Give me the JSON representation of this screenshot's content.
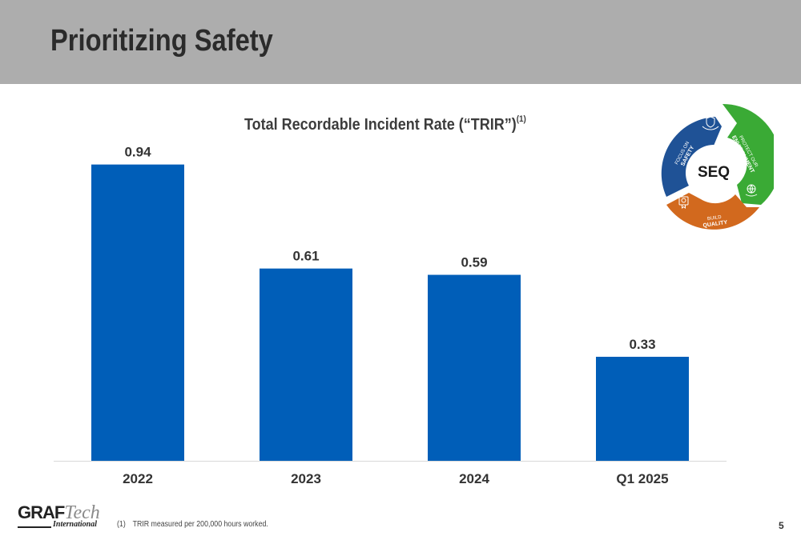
{
  "header": {
    "title": "Prioritizing Safety"
  },
  "chart_data": {
    "type": "bar",
    "title": "Total Recordable Incident Rate (“TRIR”)",
    "title_footnote_marker": "(1)",
    "categories": [
      "2022",
      "2023",
      "2024",
      "Q1 2025"
    ],
    "values": [
      0.94,
      0.61,
      0.59,
      0.33
    ],
    "value_labels": [
      "0.94",
      "0.61",
      "0.59",
      "0.33"
    ],
    "ylim": [
      0,
      1.0
    ],
    "grid": false,
    "bar_color": "#005eb8",
    "xlabel": "",
    "ylabel": ""
  },
  "seq_graphic": {
    "center_label": "SEQ",
    "segments": [
      {
        "label_line1": "FOCUS ON",
        "label_line2": "SAFETY",
        "color": "#1f5296",
        "icon": "shield-hand-icon"
      },
      {
        "label_line1": "PROTECT OUR",
        "label_line2": "ENVIRONMENT",
        "color": "#3aaa35",
        "icon": "globe-hand-icon"
      },
      {
        "label_line1": "BUILD",
        "label_line2": "QUALITY",
        "color": "#d2691e",
        "icon": "quality-badge-icon"
      }
    ]
  },
  "logo": {
    "graf": "GRAF",
    "tech": "Tech",
    "sub": "International"
  },
  "footnote": {
    "number": "(1)",
    "text": "TRIR measured per 200,000 hours worked."
  },
  "page": {
    "number": "5"
  }
}
